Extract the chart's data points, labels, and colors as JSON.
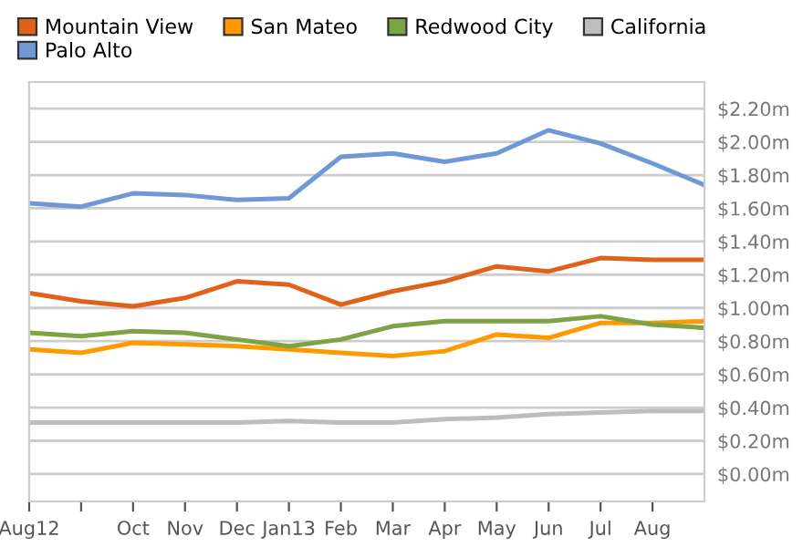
{
  "chart_data": {
    "type": "line",
    "categories": [
      "Aug12",
      null,
      "Oct",
      "Nov",
      "Dec",
      "Jan13",
      "Feb",
      "Mar",
      "Apr",
      "May",
      "Jun",
      "Jul",
      "Aug",
      null
    ],
    "series": [
      {
        "name": "Mountain View",
        "color": "#e0621a",
        "values": [
          1.09,
          1.04,
          1.01,
          1.06,
          1.16,
          1.14,
          1.02,
          1.1,
          1.16,
          1.25,
          1.22,
          1.3,
          1.29,
          1.29
        ]
      },
      {
        "name": "San Mateo",
        "color": "#ff9900",
        "values": [
          0.75,
          0.73,
          0.79,
          0.78,
          0.77,
          0.75,
          0.73,
          0.71,
          0.74,
          0.84,
          0.82,
          0.91,
          0.91,
          0.92
        ]
      },
      {
        "name": "Redwood City",
        "color": "#7ea344",
        "values": [
          0.85,
          0.83,
          0.86,
          0.85,
          0.81,
          0.77,
          0.81,
          0.89,
          0.92,
          0.92,
          0.92,
          0.95,
          0.9,
          0.88
        ]
      },
      {
        "name": "California",
        "color": "#bdbdbd",
        "values": [
          0.31,
          0.31,
          0.31,
          0.31,
          0.31,
          0.32,
          0.31,
          0.31,
          0.33,
          0.34,
          0.36,
          0.37,
          0.38,
          0.38
        ]
      },
      {
        "name": "Palo Alto",
        "color": "#7097d6",
        "values": [
          1.63,
          1.61,
          1.69,
          1.68,
          1.65,
          1.66,
          1.91,
          1.93,
          1.88,
          1.93,
          2.07,
          1.99,
          1.87,
          1.74
        ]
      }
    ],
    "ylim": [
      -0.165,
      2.36
    ],
    "yticks": [
      {
        "value": 0,
        "label": "$0.00m"
      },
      {
        "value": 0.2,
        "label": "$0.20m"
      },
      {
        "value": 0.4,
        "label": "$0.40m"
      },
      {
        "value": 0.6,
        "label": "$0.60m"
      },
      {
        "value": 0.8,
        "label": "$0.80m"
      },
      {
        "value": 1.0,
        "label": "$1.00m"
      },
      {
        "value": 1.2,
        "label": "$1.20m"
      },
      {
        "value": 1.4,
        "label": "$1.40m"
      },
      {
        "value": 1.6,
        "label": "$1.60m"
      },
      {
        "value": 1.8,
        "label": "$1.80m"
      },
      {
        "value": 2.0,
        "label": "$2.00m"
      },
      {
        "value": 2.2,
        "label": "$2.20m"
      }
    ],
    "grid": "y",
    "legend": "top",
    "marker": "none",
    "line_style": "solid"
  }
}
